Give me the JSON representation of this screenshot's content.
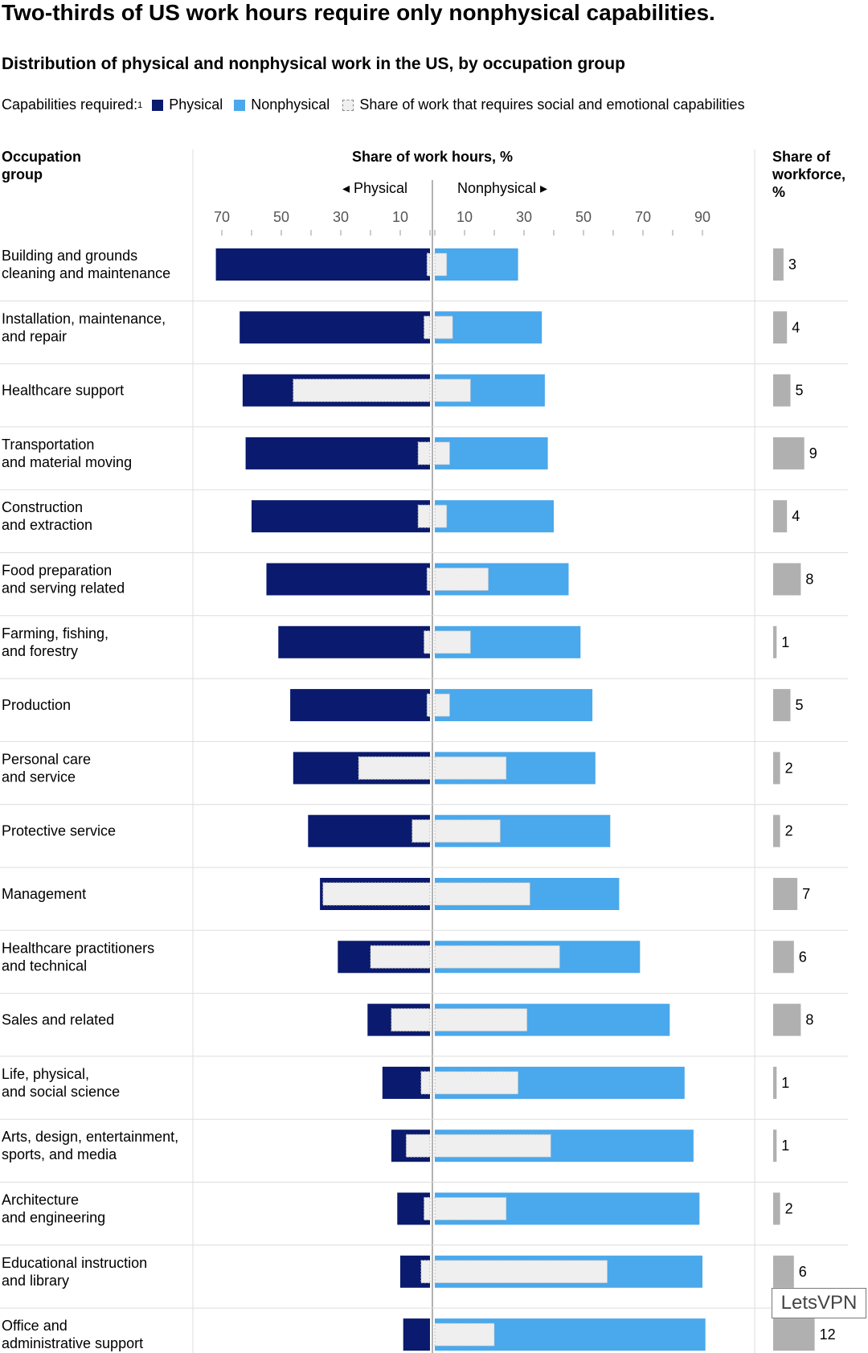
{
  "title": "Two-thirds of US work hours require only nonphysical capabilities.",
  "subtitle": "Distribution of physical and nonphysical work in the US, by occupation group",
  "legend": {
    "prefix": "Capabilities required:",
    "footnote": "1",
    "physical": "Physical",
    "nonphysical": "Nonphysical",
    "social": "Share of work that requires social and emotional capabilities"
  },
  "colors": {
    "physical": "#0a1a6e",
    "nonphysical": "#4aa8ec",
    "social": "#efefef",
    "workforce": "#b0b0b0",
    "grid": "#dddddd"
  },
  "watermark": "LetsVPN",
  "chart_data": {
    "type": "bar",
    "subtype": "diverging-horizontal",
    "title": "Share of work hours, %",
    "left_label": "Physical",
    "right_label": "Nonphysical",
    "category_header": "Occupation group",
    "workforce_header": "Share of workforce, %",
    "left_ticks": [
      70,
      50,
      30,
      10
    ],
    "right_ticks": [
      10,
      30,
      50,
      70,
      90
    ],
    "xlim": [
      0,
      100
    ],
    "categories": [
      "Building and grounds\ncleaning and maintenance",
      "Installation, maintenance,\nand repair",
      "Healthcare support",
      "Transportation\nand material moving",
      "Construction\nand extraction",
      "Food preparation\nand serving related",
      "Farming, fishing,\nand forestry",
      "Production",
      "Personal care\nand service",
      "Protective service",
      "Management",
      "Healthcare practitioners\nand technical",
      "Sales and related",
      "Life, physical,\nand social science",
      "Arts, design, entertainment,\nsports, and media",
      "Architecture\nand engineering",
      "Educational instruction\nand library",
      "Office and\nadministrative support"
    ],
    "series": [
      {
        "name": "Physical",
        "values": [
          72,
          64,
          63,
          62,
          60,
          55,
          51,
          47,
          46,
          41,
          37,
          31,
          21,
          16,
          13,
          11,
          10,
          9
        ]
      },
      {
        "name": "Physical - social and emotional share",
        "values": [
          1,
          2,
          46,
          4,
          4,
          1,
          2,
          1,
          24,
          6,
          36,
          20,
          13,
          3,
          8,
          2,
          3,
          0
        ]
      },
      {
        "name": "Nonphysical",
        "values": [
          28,
          36,
          37,
          38,
          40,
          45,
          49,
          53,
          54,
          59,
          62,
          69,
          79,
          84,
          87,
          89,
          90,
          91
        ]
      },
      {
        "name": "Nonphysical - social and emotional share",
        "values": [
          4,
          6,
          12,
          5,
          4,
          18,
          12,
          5,
          24,
          22,
          32,
          42,
          31,
          28,
          39,
          24,
          58,
          20
        ]
      }
    ],
    "workforce_share": [
      3,
      4,
      5,
      9,
      4,
      8,
      1,
      5,
      2,
      2,
      7,
      6,
      8,
      1,
      1,
      2,
      6,
      12
    ]
  }
}
